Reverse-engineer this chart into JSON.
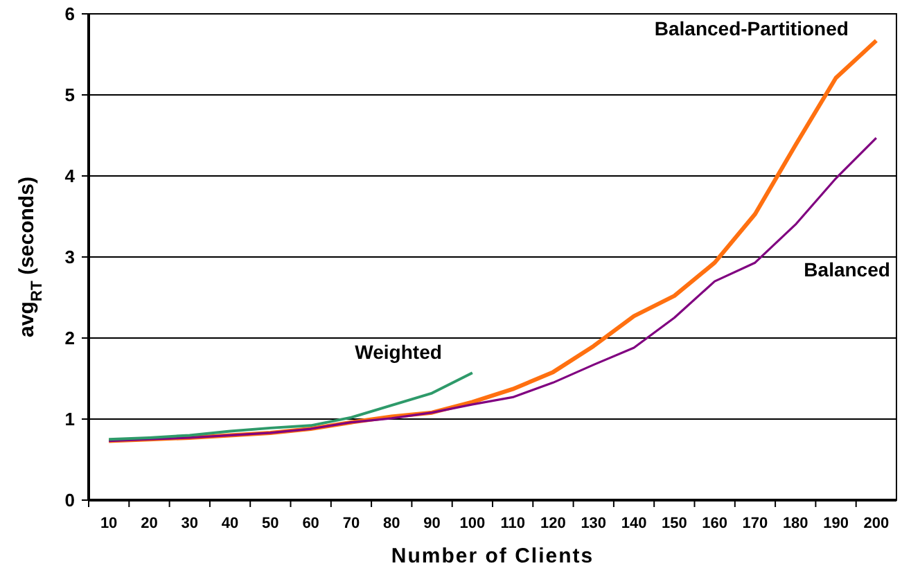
{
  "chart_data": {
    "type": "line",
    "xlabel": "Number of Clients",
    "ylabel": "avg$_{RT}$ (seconds)",
    "categories": [
      "10",
      "20",
      "30",
      "40",
      "50",
      "60",
      "70",
      "80",
      "90",
      "100",
      "110",
      "120",
      "130",
      "140",
      "150",
      "160",
      "170",
      "180",
      "190",
      "200"
    ],
    "ylim": [
      0,
      6
    ],
    "yticks": [
      0,
      1,
      2,
      3,
      4,
      5,
      6
    ],
    "grid": "y",
    "legend": false,
    "marker": "none",
    "line_style": "solid",
    "series": [
      {
        "name": "Weighted",
        "color": "#2e9a6a",
        "values": [
          0.75,
          0.77,
          0.8,
          0.85,
          0.89,
          0.92,
          1.02,
          1.17,
          1.32,
          1.57,
          null,
          null,
          null,
          null,
          null,
          null,
          null,
          null,
          null,
          null
        ]
      },
      {
        "name": "Balanced",
        "color": "#800080",
        "values": [
          0.73,
          0.75,
          0.77,
          0.8,
          0.83,
          0.88,
          0.96,
          1.01,
          1.08,
          1.18,
          1.27,
          1.45,
          1.67,
          1.88,
          2.25,
          2.7,
          2.93,
          3.4,
          3.97,
          4.47
        ]
      },
      {
        "name": "Balanced-Partitioned",
        "color": "#ff7010",
        "values": [
          0.73,
          0.75,
          0.77,
          0.8,
          0.83,
          0.88,
          0.96,
          1.03,
          1.08,
          1.21,
          1.37,
          1.58,
          1.9,
          2.27,
          2.52,
          2.93,
          3.53,
          4.38,
          5.21,
          5.67
        ]
      }
    ]
  }
}
